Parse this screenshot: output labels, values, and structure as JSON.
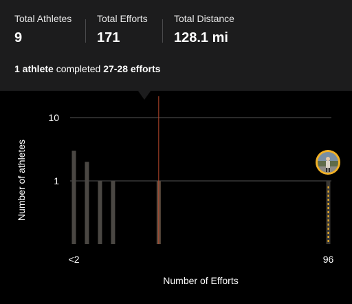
{
  "stats": [
    {
      "label": "Total Athletes",
      "value": "9"
    },
    {
      "label": "Total Efforts",
      "value": "171"
    },
    {
      "label": "Total Distance",
      "value": "128.1 mi"
    }
  ],
  "summary": {
    "athletes": "1 athlete",
    "middle": " completed ",
    "efforts": "27-28 efforts"
  },
  "colors": {
    "bar": "#4a4743",
    "highlight_bar": "#5a4a3e",
    "marker_line": "#b8492c",
    "user_ring": "#f2b126",
    "user_dash": "#f2b126",
    "grid": "#555555"
  },
  "chart_data": {
    "type": "bar",
    "xlabel": "Number of Efforts",
    "ylabel": "Number of athletes",
    "y_scale": "log",
    "ylim": [
      0.1,
      10
    ],
    "y_ticks": [
      {
        "value": 10,
        "label": "10"
      },
      {
        "value": 1,
        "label": "1"
      }
    ],
    "x_ticks": [
      {
        "bin": 0,
        "label": "<2"
      },
      {
        "bin": 39,
        "label": "96"
      }
    ],
    "bins": [
      {
        "bin": 0,
        "value": 3
      },
      {
        "bin": 2,
        "value": 2
      },
      {
        "bin": 4,
        "value": 1
      },
      {
        "bin": 6,
        "value": 1
      },
      {
        "bin": 13,
        "value": 1,
        "highlight": true
      },
      {
        "bin": 39,
        "value": 1,
        "user": true
      }
    ],
    "selected_bin": 13,
    "bin_count": 40
  }
}
